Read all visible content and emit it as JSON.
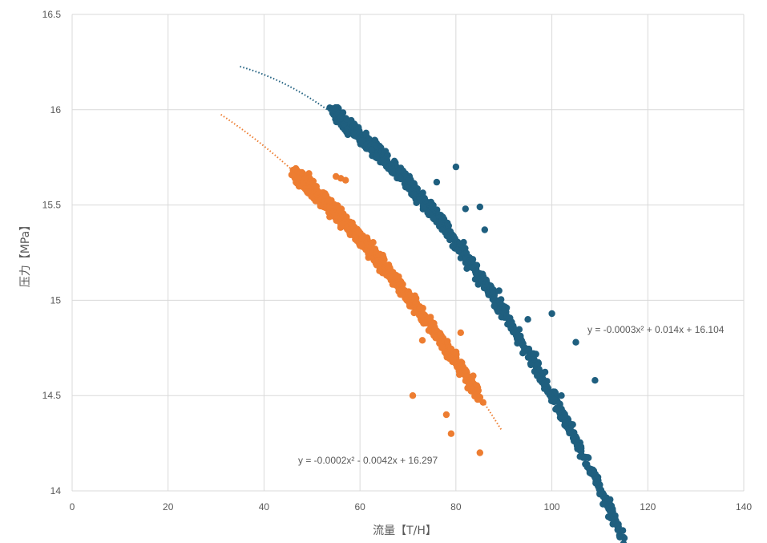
{
  "chart_data": {
    "type": "scatter",
    "title": "",
    "xlabel": "流量【T/H】",
    "ylabel": "压力【MPa】",
    "xlim": [
      0,
      140
    ],
    "ylim": [
      14,
      16.5
    ],
    "xticks": [
      0,
      20,
      40,
      60,
      80,
      100,
      120,
      140
    ],
    "yticks": [
      14,
      14.5,
      15,
      15.5,
      16,
      16.5
    ],
    "xtick_labels": [
      "0",
      "20",
      "40",
      "60",
      "80",
      "100",
      "120",
      "140"
    ],
    "ytick_labels": [
      "14",
      "14.5",
      "15",
      "15.5",
      "16",
      "16.5"
    ],
    "grid": true,
    "legend": "none",
    "series": [
      {
        "color": "#1f5f7f",
        "x_range": [
          55,
          115
        ],
        "trendline": {
          "type": "polynomial",
          "coefficients": [
            -0.0003,
            0.014,
            16.104
          ],
          "x_range": [
            35,
            116.5
          ],
          "equation": "y = -0.0003x² + 0.014x + 16.104"
        },
        "outliers": [
          [
            80,
            15.7
          ],
          [
            76,
            15.62
          ],
          [
            82,
            15.48
          ],
          [
            89,
            15.05
          ],
          [
            95,
            14.9
          ],
          [
            100,
            14.93
          ],
          [
            102,
            14.5
          ],
          [
            105,
            14.78
          ],
          [
            109,
            14.58
          ],
          [
            94,
            14.76
          ],
          [
            86,
            15.37
          ],
          [
            85,
            15.49
          ],
          [
            88,
            14.97
          ]
        ]
      },
      {
        "color": "#ed7d31",
        "x_range": [
          47,
          85
        ],
        "trendline": {
          "type": "polynomial",
          "coefficients": [
            -0.0002,
            -0.0042,
            16.297
          ],
          "x_range": [
            31,
            89.5
          ],
          "equation": "y = -0.0002x² - 0.0042x + 16.297"
        },
        "outliers": [
          [
            55,
            15.65
          ],
          [
            56,
            15.64
          ],
          [
            57,
            15.63
          ],
          [
            81,
            14.83
          ],
          [
            85,
            14.2
          ],
          [
            79,
            14.3
          ],
          [
            73,
            14.79
          ],
          [
            66,
            15.17
          ],
          [
            71,
            14.5
          ],
          [
            78,
            14.4
          ]
        ]
      }
    ]
  }
}
